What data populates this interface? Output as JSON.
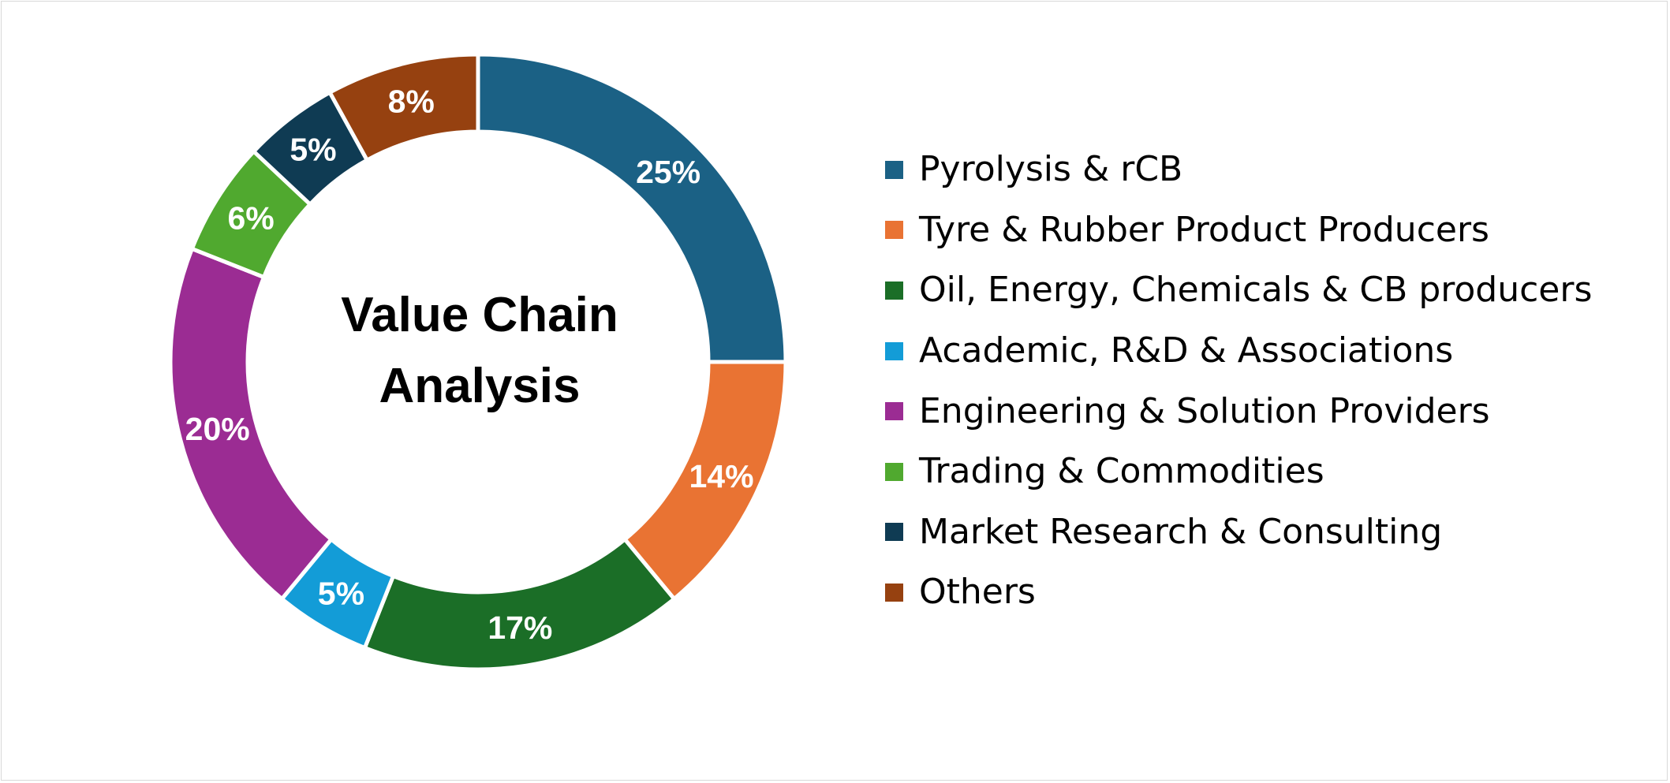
{
  "chart_data": {
    "type": "pie",
    "variant": "donut",
    "title": "Value Chain Analysis",
    "title_lines": [
      "Value Chain",
      "Analysis"
    ],
    "legend_position": "right",
    "slices": [
      {
        "name": "Pyrolysis & rCB",
        "value": 25,
        "label": "25%",
        "color": "#1b6185"
      },
      {
        "name": "Tyre & Rubber Product Producers",
        "value": 14,
        "label": "14%",
        "color": "#e97333"
      },
      {
        "name": "Oil, Energy, Chemicals & CB producers",
        "value": 17,
        "label": "17%",
        "color": "#1b6e27"
      },
      {
        "name": "Academic, R&D & Associations",
        "value": 5,
        "label": "5%",
        "color": "#139cd7"
      },
      {
        "name": "Engineering & Solution Providers",
        "value": 20,
        "label": "20%",
        "color": "#9b2c93"
      },
      {
        "name": "Trading & Commodities",
        "value": 6,
        "label": "6%",
        "color": "#50a92f"
      },
      {
        "name": "Market Research & Consulting",
        "value": 5,
        "label": "5%",
        "color": "#0f3b53"
      },
      {
        "name": "Others",
        "value": 8,
        "label": "8%",
        "color": "#964110"
      }
    ]
  }
}
